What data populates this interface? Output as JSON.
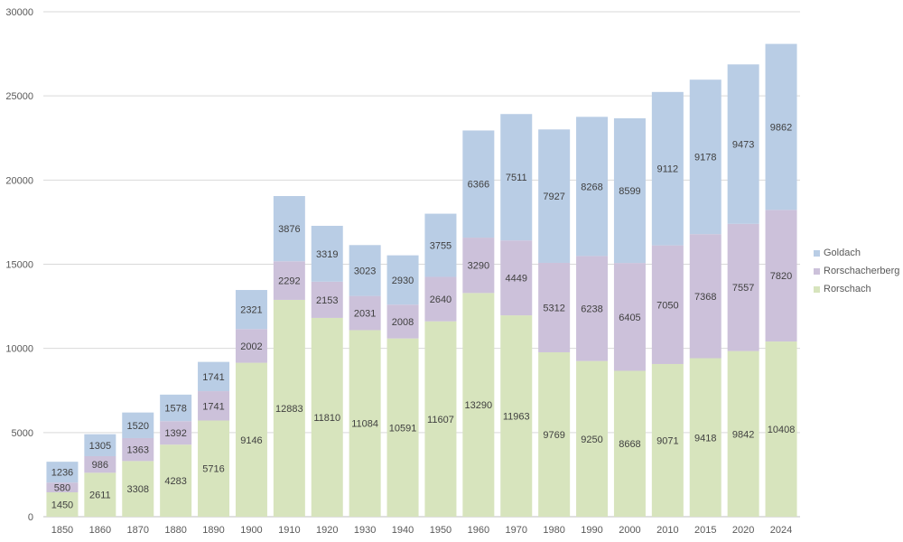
{
  "chart_data": {
    "type": "bar",
    "stacked": true,
    "title": "",
    "xlabel": "",
    "ylabel": "",
    "ylim": [
      0,
      30000
    ],
    "y_ticks": [
      0,
      5000,
      10000,
      15000,
      20000,
      25000,
      30000
    ],
    "grid": true,
    "legend_position": "right",
    "categories": [
      "1850",
      "1860",
      "1870",
      "1880",
      "1890",
      "1900",
      "1910",
      "1920",
      "1930",
      "1940",
      "1950",
      "1960",
      "1970",
      "1980",
      "1990",
      "2000",
      "2010",
      "2015",
      "2020",
      "2024"
    ],
    "series": [
      {
        "name": "Rorschach",
        "color": "#d7e4bd",
        "values": [
          1450,
          2611,
          3308,
          4283,
          5716,
          9146,
          12883,
          11810,
          11084,
          10591,
          11607,
          13290,
          11963,
          9769,
          9250,
          8668,
          9071,
          9418,
          9842,
          10408
        ]
      },
      {
        "name": "Rorschacherberg",
        "color": "#ccc1da",
        "values": [
          580,
          986,
          1363,
          1392,
          1741,
          2002,
          2292,
          2153,
          2031,
          2008,
          2640,
          3290,
          4449,
          5312,
          6238,
          6405,
          7050,
          7368,
          7557,
          7820
        ]
      },
      {
        "name": "Goldach",
        "color": "#b9cde5",
        "values": [
          1236,
          1305,
          1520,
          1578,
          1741,
          2321,
          3876,
          3319,
          3023,
          2930,
          3755,
          6366,
          7511,
          7927,
          8268,
          8599,
          9112,
          9178,
          9473,
          9862
        ]
      }
    ],
    "legend_order": [
      "Goldach",
      "Rorschacherberg",
      "Rorschach"
    ]
  }
}
